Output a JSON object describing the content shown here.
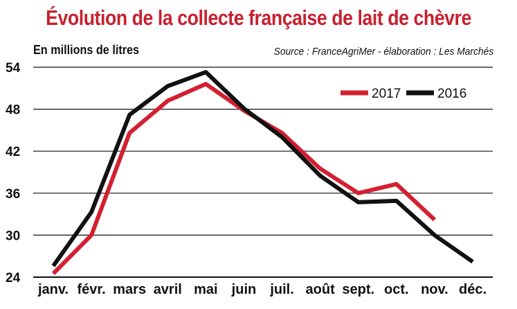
{
  "header": {
    "title": "Évolution de la collecte française de lait de chèvre",
    "unit": "En millions de litres",
    "source": "Source : FranceAgriMer - élaboration : Les Marchés"
  },
  "chart_data": {
    "type": "line",
    "title": "Évolution de la collecte française de lait de chèvre",
    "ylabel": "En millions de litres",
    "xlabel": "",
    "categories": [
      "janv.",
      "févr.",
      "mars",
      "avril",
      "mai",
      "juin",
      "juil.",
      "août",
      "sept.",
      "oct.",
      "nov.",
      "déc."
    ],
    "ylim": [
      24,
      54
    ],
    "yticks": [
      24,
      30,
      36,
      42,
      48,
      54
    ],
    "grid": true,
    "legend_position": "top-right",
    "series": [
      {
        "name": "2017",
        "color": "#d32030",
        "values": [
          24.5,
          30.0,
          44.6,
          49.2,
          51.6,
          47.8,
          44.6,
          39.5,
          36.0,
          37.3,
          32.2,
          null
        ]
      },
      {
        "name": "2016",
        "color": "#111111",
        "values": [
          25.6,
          33.3,
          47.2,
          51.3,
          53.3,
          48.1,
          44.0,
          38.5,
          34.7,
          34.9,
          30.0,
          26.2
        ]
      }
    ]
  }
}
